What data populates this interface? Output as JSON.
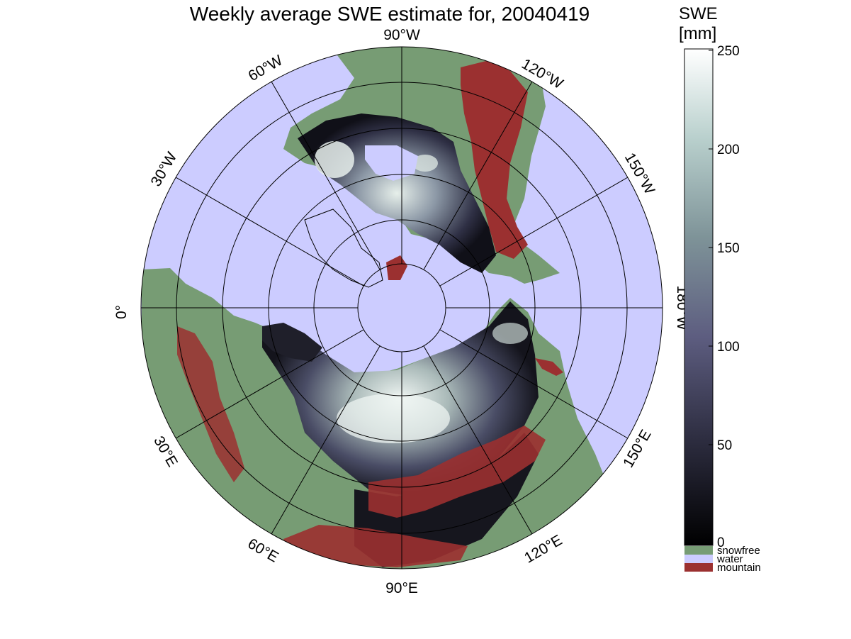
{
  "title": "Weekly average SWE estimate for, 20040419",
  "colorbar": {
    "title_line1": "SWE",
    "title_line2": "[mm]",
    "ticks": [
      "250",
      "200",
      "150",
      "100",
      "50",
      "0"
    ],
    "legend": [
      {
        "label": "snowfree",
        "color": "#779c74"
      },
      {
        "label": "water",
        "color": "#ccccff"
      },
      {
        "label": "mountain",
        "color": "#9b3030"
      }
    ]
  },
  "longitude_labels": {
    "w90": "90°W",
    "w120": "120°W",
    "w150": "150°W",
    "w180": "180°W",
    "e150": "150°E",
    "e120": "120°E",
    "e90": "90°E",
    "e60": "60°E",
    "e30": "30°E",
    "zero": "0°",
    "w30": "30°W",
    "w60": "60°W"
  },
  "colors": {
    "water": "#ccccff",
    "snowfree": "#779c74",
    "mountain": "#9b3030",
    "swe_low": "#0a0a10",
    "swe_high": "#f2f7f5"
  }
}
